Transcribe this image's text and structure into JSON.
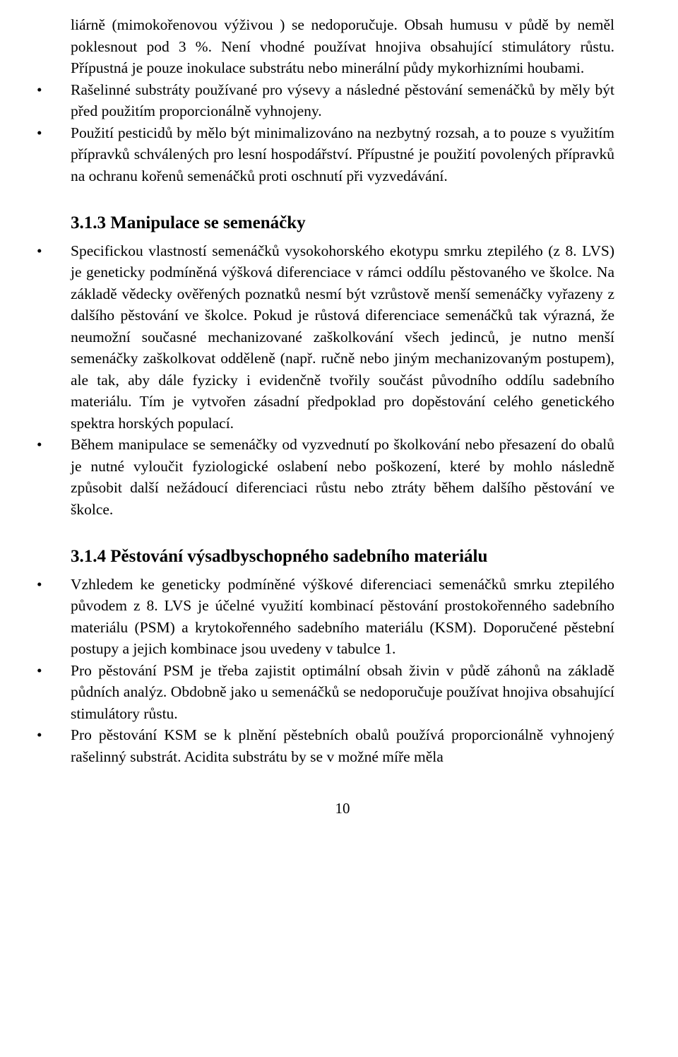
{
  "p_cont": "liárně (mimokořenovou výživou ) se nedoporučuje. Obsah humusu v půdě by neměl poklesnout pod 3 %. Není vhodné používat hnojiva obsahující stimulátory růstu. Přípustná je pouze inokulace substrátu nebo minerální půdy mykorhizními houbami.",
  "b1": "Rašelinné substráty používané pro výsevy a následné pěstování semenáčků by měly být před použitím proporcionálně vyhnojeny.",
  "b2": "Použití pesticidů by mělo být minimalizováno na nezbytný rozsah, a to pouze s využitím přípravků schválených pro lesní hospodářství. Přípustné je použití povolených přípravků na ochranu kořenů semenáčků proti oschnutí při vyzvedávání.",
  "h313": "3.1.3  Manipulace se semenáčky",
  "b3": "Specifickou vlastností semenáčků vysokohorského ekotypu smrku ztepilého (z 8. LVS) je geneticky podmíněná výšková diferenciace v rámci oddílu pěstovaného ve školce. Na základě vědecky ověřených poznatků nesmí být vzrůstově menší semenáčky vyřazeny z dalšího pěstování ve školce. Pokud je růstová diferenciace semenáčků tak výrazná, že neumožní současné mechanizované zaškolkování všech jedinců, je nutno menší semenáčky zaškolkovat odděleně (např. ručně nebo jiným mechanizovaným postupem), ale tak, aby dále fyzicky i evidenčně tvořily součást původního oddílu sadebního materiálu. Tím je vytvořen zásadní předpoklad pro dopěstování celého genetického spektra horských populací.",
  "b4": "Během manipulace se semenáčky od vyzvednutí po školkování nebo přesazení do obalů je nutné vyloučit fyziologické oslabení nebo poškození, které by mohlo následně způsobit další nežádoucí diferenciaci růstu nebo ztráty během dalšího pěstování ve školce.",
  "h314": "3.1.4  Pěstování výsadbyschopného sadebního materiálu",
  "b5": "Vzhledem ke geneticky podmíněné výškové diferenciaci semenáčků smrku ztepilého původem z 8. LVS je účelné využití kombinací pěstování prostokořenného sadebního materiálu (PSM) a krytokořenného sadebního materiálu (KSM). Doporučené pěstební postupy a jejich kombinace jsou uvedeny v tabulce 1.",
  "b6": "Pro pěstování PSM je třeba zajistit optimální obsah živin v půdě záhonů na základě půdních analýz. Obdobně jako u semenáčků se nedoporučuje používat hnojiva obsahující stimulátory růstu.",
  "b7": "Pro pěstování KSM se k plnění pěstebních obalů používá proporcionálně vyhnojený rašelinný substrát. Acidita substrátu by se v možné míře měla",
  "page": "10"
}
